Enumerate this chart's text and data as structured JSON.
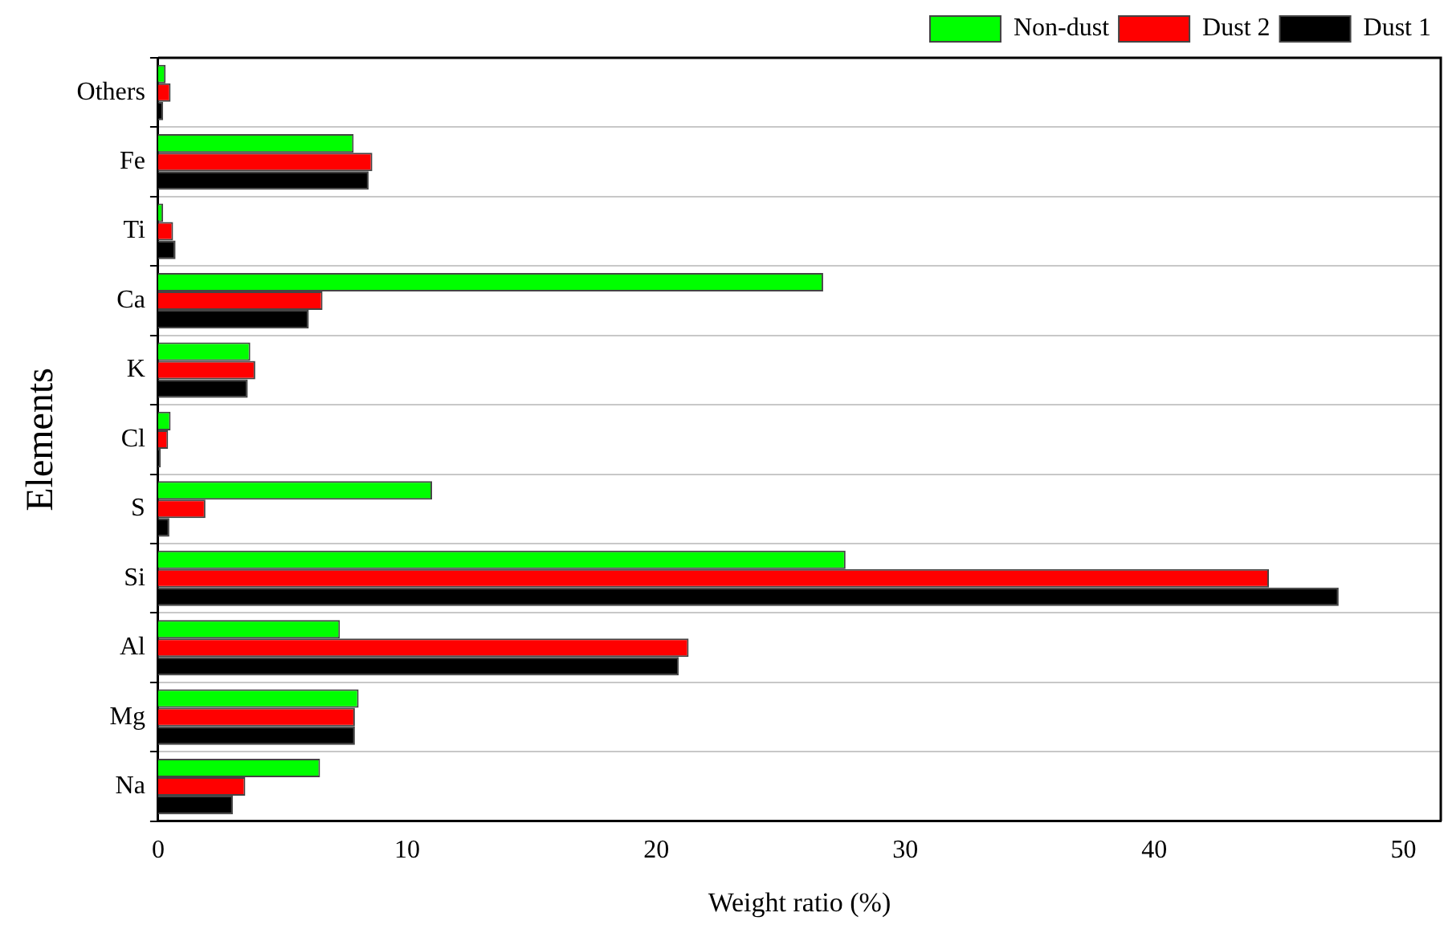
{
  "chart_data": {
    "type": "bar",
    "orientation": "horizontal",
    "xlabel": "Weight ratio (%)",
    "ylabel": "Elements",
    "categories": [
      "Others",
      "Fe",
      "Ti",
      "Ca",
      "K",
      "Cl",
      "S",
      "Si",
      "Al",
      "Mg",
      "Na"
    ],
    "series": [
      {
        "name": "Non-dust",
        "color": "#00ff00",
        "values": [
          0.3,
          7.85,
          0.2,
          26.7,
          3.7,
          0.5,
          11.0,
          27.6,
          7.3,
          8.05,
          6.5
        ]
      },
      {
        "name": "Dust 2",
        "color": "#ff0000",
        "values": [
          0.5,
          8.6,
          0.6,
          6.6,
          3.9,
          0.4,
          1.9,
          44.6,
          21.3,
          7.9,
          3.5
        ]
      },
      {
        "name": "Dust 1",
        "color": "#000000",
        "values": [
          0.2,
          8.45,
          0.7,
          6.05,
          3.6,
          0.1,
          0.45,
          47.4,
          20.9,
          7.9,
          3.0
        ]
      }
    ],
    "xlim": [
      0,
      51.5
    ],
    "xticks": [
      0,
      10,
      20,
      30,
      40,
      50
    ],
    "grid": "y",
    "legend": "top right"
  }
}
